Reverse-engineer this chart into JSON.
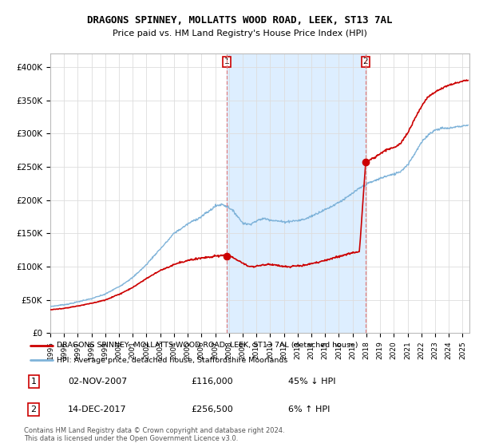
{
  "title": "DRAGONS SPINNEY, MOLLATTS WOOD ROAD, LEEK, ST13 7AL",
  "subtitle": "Price paid vs. HM Land Registry's House Price Index (HPI)",
  "legend_line1": "DRAGONS SPINNEY, MOLLATTS WOOD ROAD, LEEK, ST13 7AL (detached house)",
  "legend_line2": "HPI: Average price, detached house, Staffordshire Moorlands",
  "annotation1_date": "02-NOV-2007",
  "annotation1_price": "£116,000",
  "annotation1_hpi": "45% ↓ HPI",
  "annotation2_date": "14-DEC-2017",
  "annotation2_price": "£256,500",
  "annotation2_hpi": "6% ↑ HPI",
  "footer": "Contains HM Land Registry data © Crown copyright and database right 2024.\nThis data is licensed under the Open Government Licence v3.0.",
  "sale1_year": 2007.84,
  "sale1_price": 116000,
  "sale2_year": 2017.95,
  "sale2_price": 256500,
  "red_color": "#cc0000",
  "blue_color": "#7fb3d9",
  "shade_color": "#ddeeff",
  "vline_color": "#e08080",
  "grid_color": "#dddddd",
  "ylim_min": 0,
  "ylim_max": 420000,
  "yticks": [
    0,
    50000,
    100000,
    150000,
    200000,
    250000,
    300000,
    350000,
    400000
  ],
  "ytick_labels": [
    "£0",
    "£50K",
    "£100K",
    "£150K",
    "£200K",
    "£250K",
    "£300K",
    "£350K",
    "£400K"
  ],
  "xmin": 1995.0,
  "xmax": 2025.5
}
